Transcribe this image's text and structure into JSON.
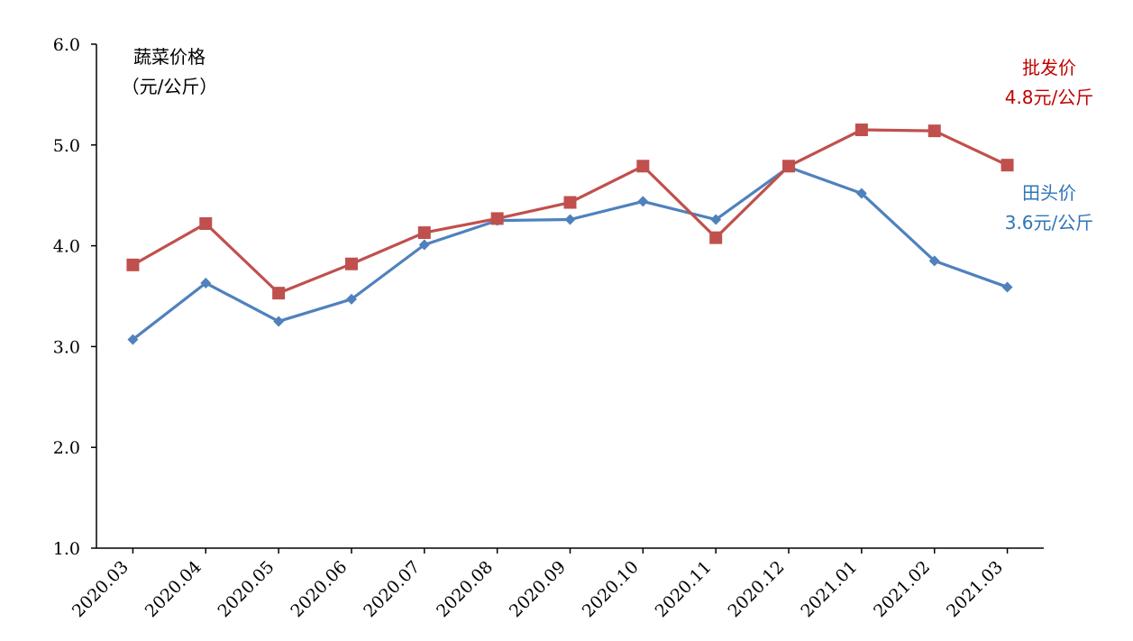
{
  "chart_data": {
    "type": "line",
    "categories": [
      "2020.03",
      "2020.04",
      "2020.05",
      "2020.06",
      "2020.07",
      "2020.08",
      "2020.09",
      "2020.10",
      "2020.11",
      "2020.12",
      "2021.01",
      "2021.02",
      "2021.03"
    ],
    "series": [
      {
        "name": "批发价",
        "values": [
          3.81,
          4.22,
          3.53,
          3.82,
          4.13,
          4.27,
          4.43,
          4.79,
          4.08,
          4.79,
          5.15,
          5.14,
          4.8
        ],
        "color": "#C0504D",
        "marker": "square",
        "annotation": [
          "批发价",
          "4.8元/公斤"
        ]
      },
      {
        "name": "田头价",
        "values": [
          3.07,
          3.63,
          3.25,
          3.47,
          4.01,
          4.25,
          4.26,
          4.44,
          4.26,
          4.78,
          4.52,
          3.85,
          3.59
        ],
        "color": "#4F81BD",
        "marker": "diamond",
        "annotation": [
          "田头价",
          "3.6元/公斤"
        ]
      }
    ],
    "ylabel": [
      "蔬菜价格",
      "（元/公斤）"
    ],
    "ylim": [
      1.0,
      6.0
    ],
    "yticks": [
      "1.0",
      "2.0",
      "3.0",
      "4.0",
      "5.0",
      "6.0"
    ],
    "grid": false,
    "legend": "none"
  }
}
